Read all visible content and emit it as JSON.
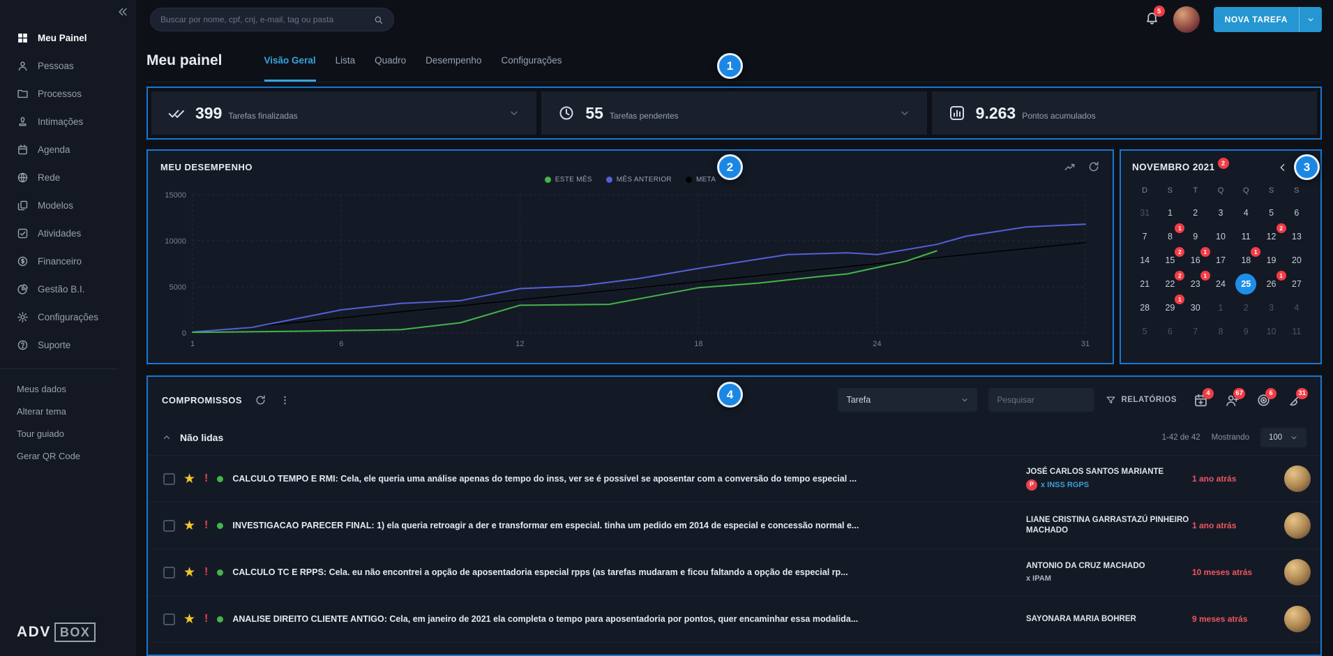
{
  "app": {
    "accent": "#2596d1",
    "highlight_border": "#1976d2",
    "danger": "#f23c45",
    "success": "#43b649"
  },
  "sidebar": {
    "items": [
      {
        "label": "Meu Painel",
        "icon": "grid",
        "active": true
      },
      {
        "label": "Pessoas",
        "icon": "person"
      },
      {
        "label": "Processos",
        "icon": "folder"
      },
      {
        "label": "Intimações",
        "icon": "stamp"
      },
      {
        "label": "Agenda",
        "icon": "calendar"
      },
      {
        "label": "Rede",
        "icon": "globe"
      },
      {
        "label": "Modelos",
        "icon": "copy"
      },
      {
        "label": "Atividades",
        "icon": "check-square"
      },
      {
        "label": "Financeiro",
        "icon": "dollar"
      },
      {
        "label": "Gestão B.I.",
        "icon": "pie"
      },
      {
        "label": "Configurações",
        "icon": "gear"
      },
      {
        "label": "Suporte",
        "icon": "help"
      }
    ],
    "footer_links": [
      "Meus dados",
      "Alterar tema",
      "Tour guiado",
      "Gerar QR Code"
    ],
    "logo": {
      "part1": "ADV",
      "part2": "BOX"
    }
  },
  "topbar": {
    "search_placeholder": "Buscar por nome, cpf, cnj, e-mail, tag ou pasta",
    "notifications_badge": "5",
    "new_task_button": "NOVA TAREFA"
  },
  "header": {
    "title": "Meu painel",
    "tabs": [
      {
        "label": "Visão Geral",
        "active": true
      },
      {
        "label": "Lista"
      },
      {
        "label": "Quadro"
      },
      {
        "label": "Desempenho"
      },
      {
        "label": "Configurações"
      }
    ]
  },
  "stats": [
    {
      "icon": "double-check",
      "value": "399",
      "label": "Tarefas finalizadas",
      "has_dropdown": true
    },
    {
      "icon": "clock",
      "value": "55",
      "label": "Tarefas pendentes",
      "has_dropdown": true
    },
    {
      "icon": "bar-chart",
      "value": "9.263",
      "label": "Pontos acumulados",
      "has_dropdown": false
    }
  ],
  "performance": {
    "title": "MEU DESEMPENHO",
    "chart_data": {
      "type": "line",
      "title": "MEU DESEMPENHO",
      "xlabel": "",
      "ylabel": "",
      "x_range": [
        1,
        31
      ],
      "y_range": [
        0,
        15000
      ],
      "x_tick_days": [
        1,
        6,
        12,
        18,
        24,
        31
      ],
      "y_ticks": [
        0,
        5000,
        10000,
        15000
      ],
      "legend_position": "top-center",
      "grid": "dashed",
      "series": [
        {
          "name": "ESTE MÊS",
          "color": "#43b649",
          "points": [
            [
              1,
              50
            ],
            [
              5,
              200
            ],
            [
              8,
              350
            ],
            [
              10,
              1100
            ],
            [
              12,
              3000
            ],
            [
              15,
              3100
            ],
            [
              16,
              3700
            ],
            [
              18,
              4900
            ],
            [
              20,
              5400
            ],
            [
              22,
              6100
            ],
            [
              23,
              6400
            ],
            [
              25,
              7800
            ],
            [
              26,
              8900
            ]
          ]
        },
        {
          "name": "MÊS ANTERIOR",
          "color": "#5560d9",
          "points": [
            [
              1,
              100
            ],
            [
              3,
              600
            ],
            [
              6,
              2500
            ],
            [
              8,
              3200
            ],
            [
              10,
              3500
            ],
            [
              12,
              4800
            ],
            [
              14,
              5100
            ],
            [
              16,
              5900
            ],
            [
              18,
              7000
            ],
            [
              20,
              8000
            ],
            [
              21,
              8500
            ],
            [
              23,
              8700
            ],
            [
              24,
              8500
            ],
            [
              26,
              9600
            ],
            [
              27,
              10500
            ],
            [
              29,
              11500
            ],
            [
              31,
              11800
            ]
          ]
        },
        {
          "name": "META",
          "color": "#000000",
          "points": [
            [
              1,
              0
            ],
            [
              31,
              9800
            ]
          ]
        }
      ]
    }
  },
  "calendar": {
    "title": "NOVEMBRO 2021",
    "title_badge": "2",
    "day_headers": [
      "D",
      "S",
      "T",
      "Q",
      "Q",
      "S",
      "S"
    ],
    "weeks": [
      [
        {
          "d": 31,
          "muted": true
        },
        {
          "d": 1
        },
        {
          "d": 2
        },
        {
          "d": 3
        },
        {
          "d": 4
        },
        {
          "d": 5
        },
        {
          "d": 6
        }
      ],
      [
        {
          "d": 7
        },
        {
          "d": 8,
          "badge": "1"
        },
        {
          "d": 9
        },
        {
          "d": 10
        },
        {
          "d": 11
        },
        {
          "d": 12,
          "badge": "2"
        },
        {
          "d": 13
        }
      ],
      [
        {
          "d": 14
        },
        {
          "d": 15,
          "badge": "2"
        },
        {
          "d": 16,
          "badge": "1"
        },
        {
          "d": 17
        },
        {
          "d": 18,
          "badge": "1"
        },
        {
          "d": 19
        },
        {
          "d": 20
        }
      ],
      [
        {
          "d": 21
        },
        {
          "d": 22,
          "badge": "2"
        },
        {
          "d": 23,
          "badge": "1"
        },
        {
          "d": 24
        },
        {
          "d": 25,
          "selected": true
        },
        {
          "d": 26,
          "badge": "1"
        },
        {
          "d": 27
        }
      ],
      [
        {
          "d": 28
        },
        {
          "d": 29,
          "badge": "1"
        },
        {
          "d": 30
        },
        {
          "d": 1,
          "muted": true
        },
        {
          "d": 2,
          "muted": true
        },
        {
          "d": 3,
          "muted": true
        },
        {
          "d": 4,
          "muted": true
        }
      ],
      [
        {
          "d": 5,
          "muted": true
        },
        {
          "d": 6,
          "muted": true
        },
        {
          "d": 7,
          "muted": true
        },
        {
          "d": 8,
          "muted": true
        },
        {
          "d": 9,
          "muted": true
        },
        {
          "d": 10,
          "muted": true
        },
        {
          "d": 11,
          "muted": true
        }
      ]
    ]
  },
  "compromissos": {
    "title": "COMPROMISSOS",
    "type_filter": "Tarefa",
    "search_placeholder": "Pesquisar",
    "reports_button": "RELATÓRIOS",
    "toolbar_icons": [
      {
        "icon": "calendar-plus",
        "badge": "4"
      },
      {
        "icon": "person-add",
        "badge": "67"
      },
      {
        "icon": "target",
        "badge": "6"
      },
      {
        "icon": "broom",
        "badge": "31"
      }
    ],
    "section_title": "Não lidas",
    "range_label": "1-42 de 42",
    "showing_label": "Mostrando",
    "page_size": "100",
    "tasks": [
      {
        "title": "CALCULO TEMPO E RMI: Cela, ele queria uma análise apenas do tempo do inss, ver se é possível se aposentar com a conversão do tempo especial ...",
        "assignee": "JOSÉ CARLOS SANTOS MARIANTE",
        "tag_badge": "P",
        "tag": "x INSS RGPS",
        "time": "1 ano atrás"
      },
      {
        "title": "INVESTIGACAO PARECER FINAL: 1) ela queria retroagir a der e transformar em especial. tinha um pedido em 2014 de especial e concessão normal e...",
        "assignee": "LIANE CRISTINA GARRASTAZÚ PINHEIRO MACHADO",
        "time": "1 ano atrás"
      },
      {
        "title": "CALCULO TC E RPPS: Cela. eu não encontrei a opção de aposentadoria especial rpps (as tarefas mudaram e ficou faltando a opção de especial rp...",
        "assignee": "ANTONIO DA CRUZ MACHADO",
        "tag": "x IPAM",
        "time": "10 meses atrás"
      },
      {
        "title": "ANALISE DIREITO CLIENTE ANTIGO: Cela, em janeiro de 2021 ela completa o tempo para aposentadoria por pontos, quer encaminhar essa modalida...",
        "assignee": "SAYONARA MARIA BOHRER",
        "time": "9 meses atrás"
      }
    ]
  },
  "annotations": [
    {
      "label": "1"
    },
    {
      "label": "2"
    },
    {
      "label": "3"
    },
    {
      "label": "4"
    }
  ]
}
